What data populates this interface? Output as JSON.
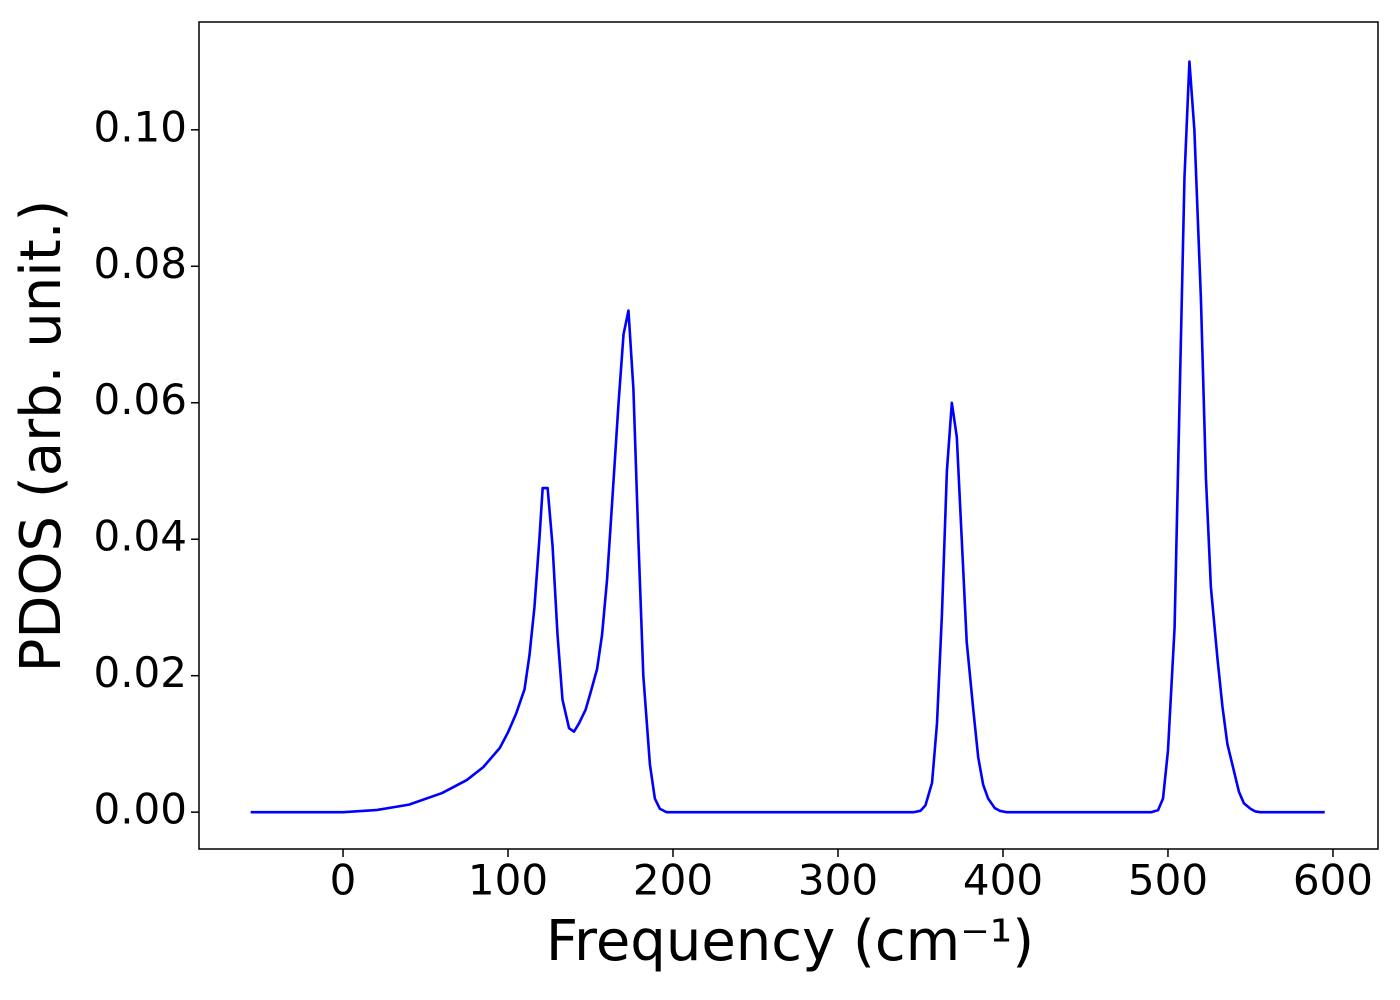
{
  "chart_data": {
    "type": "line",
    "xlabel": "Frequency (cm⁻¹)",
    "ylabel": "PDOS (arb. unit.)",
    "xlim": [
      -87.3,
      627.3
    ],
    "ylim": [
      -0.0054,
      0.1158
    ],
    "xticks": [
      0,
      100,
      200,
      300,
      400,
      500,
      600
    ],
    "yticks": [
      {
        "value": 0,
        "label": "0.00"
      },
      {
        "value": 0.02,
        "label": "0.02"
      },
      {
        "value": 0.04,
        "label": "0.04"
      },
      {
        "value": 0.06,
        "label": "0.06"
      },
      {
        "value": 0.08,
        "label": "0.08"
      },
      {
        "value": 0.1,
        "label": "0.10"
      }
    ],
    "grid": false,
    "series": [
      {
        "color": "#0000ff",
        "x": [
          -56,
          0,
          20,
          40,
          60,
          75,
          85,
          95,
          100,
          105,
          110,
          113,
          116,
          119,
          121,
          124,
          127,
          130,
          133,
          137,
          140,
          143,
          147,
          150,
          154,
          157,
          160,
          163,
          167,
          170,
          173,
          176,
          179,
          182,
          186,
          189,
          192,
          196,
          300,
          346,
          350,
          353,
          357,
          360,
          363,
          366,
          369,
          372,
          375,
          378,
          382,
          385,
          388,
          391,
          395,
          398,
          402,
          490,
          494,
          497,
          500,
          504,
          507,
          510,
          513,
          516,
          520,
          523,
          526,
          530,
          533,
          536,
          540,
          543,
          546,
          550,
          553,
          556,
          595
        ],
        "values": [
          0,
          0,
          0.0003,
          0.0011,
          0.0028,
          0.0047,
          0.0066,
          0.0094,
          0.0117,
          0.0145,
          0.018,
          0.023,
          0.03,
          0.04,
          0.0475,
          0.0475,
          0.039,
          0.026,
          0.0165,
          0.0123,
          0.0118,
          0.013,
          0.015,
          0.0175,
          0.021,
          0.026,
          0.034,
          0.045,
          0.06,
          0.07,
          0.0735,
          0.062,
          0.04,
          0.02,
          0.007,
          0.002,
          0.0005,
          0,
          0,
          0,
          0.0002,
          0.001,
          0.0043,
          0.013,
          0.029,
          0.05,
          0.06,
          0.055,
          0.04,
          0.025,
          0.015,
          0.008,
          0.004,
          0.002,
          0.0006,
          0.0002,
          0,
          0,
          0.0003,
          0.002,
          0.009,
          0.027,
          0.06,
          0.093,
          0.11,
          0.1,
          0.075,
          0.049,
          0.033,
          0.0225,
          0.0155,
          0.01,
          0.006,
          0.003,
          0.0013,
          0.0005,
          0.0001,
          0,
          0
        ]
      }
    ]
  }
}
